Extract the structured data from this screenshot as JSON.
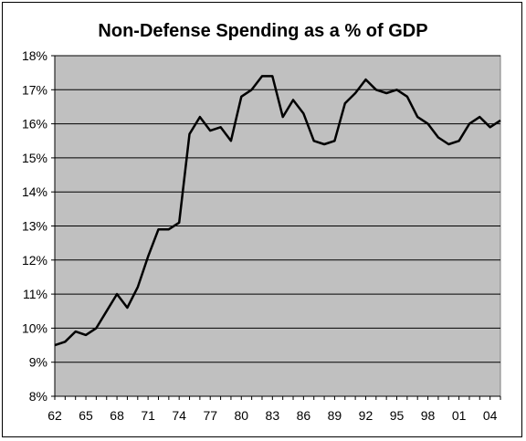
{
  "chart_data": {
    "type": "line",
    "title": "Non-Defense Spending as a % of GDP",
    "xlabel": "",
    "ylabel": "",
    "ylim": [
      8,
      18
    ],
    "xlim": [
      1962,
      2005
    ],
    "x_ticks": [
      1962,
      1965,
      1968,
      1971,
      1974,
      1977,
      1980,
      1983,
      1986,
      1989,
      1992,
      1995,
      1998,
      2001,
      2004
    ],
    "x_tick_labels": [
      "62",
      "65",
      "68",
      "71",
      "74",
      "77",
      "80",
      "83",
      "86",
      "89",
      "92",
      "95",
      "98",
      "01",
      "04"
    ],
    "y_ticks": [
      8,
      9,
      10,
      11,
      12,
      13,
      14,
      15,
      16,
      17,
      18
    ],
    "y_tick_labels": [
      "8%",
      "9%",
      "10%",
      "11%",
      "12%",
      "13%",
      "14%",
      "15%",
      "16%",
      "17%",
      "18%"
    ],
    "grid": "horizontal",
    "legend": "none",
    "plot_background": "#C0C0C0",
    "line_color": "#000000",
    "series": [
      {
        "x": [
          1962,
          1963,
          1964,
          1965,
          1966,
          1967,
          1968,
          1969,
          1970,
          1971,
          1972,
          1973,
          1974,
          1975,
          1976,
          1977,
          1978,
          1979,
          1980,
          1981,
          1982,
          1983,
          1984,
          1985,
          1986,
          1987,
          1988,
          1989,
          1990,
          1991,
          1992,
          1993,
          1994,
          1995,
          1996,
          1997,
          1998,
          1999,
          2000,
          2001,
          2002,
          2003,
          2004,
          2005
        ],
        "values": [
          9.5,
          9.6,
          9.9,
          9.8,
          10.0,
          10.5,
          11.0,
          10.6,
          11.2,
          12.1,
          12.9,
          12.9,
          13.1,
          15.7,
          16.2,
          15.8,
          15.9,
          15.5,
          16.8,
          17.0,
          17.4,
          17.4,
          16.2,
          16.7,
          16.3,
          15.5,
          15.4,
          15.5,
          16.6,
          16.9,
          17.3,
          17.0,
          16.9,
          17.0,
          16.8,
          16.2,
          16.0,
          15.6,
          15.4,
          15.5,
          16.0,
          16.2,
          15.9,
          16.1
        ]
      }
    ]
  }
}
